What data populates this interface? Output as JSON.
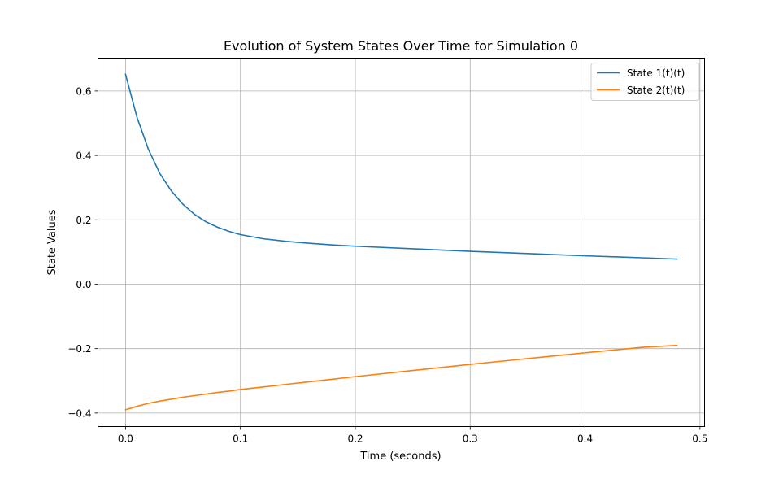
{
  "chart_data": {
    "type": "line",
    "title": "Evolution of System States Over Time for Simulation 0",
    "xlabel": "Time (seconds)",
    "ylabel": "State Values",
    "xlim": [
      -0.024,
      0.504
    ],
    "ylim": [
      -0.442,
      0.702
    ],
    "xticks": [
      0.0,
      0.1,
      0.2,
      0.3,
      0.4,
      0.5
    ],
    "xtick_labels": [
      "0.0",
      "0.1",
      "0.2",
      "0.3",
      "0.4",
      "0.5"
    ],
    "yticks": [
      -0.4,
      -0.2,
      0.0,
      0.2,
      0.4,
      0.6
    ],
    "ytick_labels": [
      "−0.4",
      "−0.2",
      "0.0",
      "0.2",
      "0.4",
      "0.6"
    ],
    "grid": true,
    "legend_position": "top-right",
    "x": [
      0.0,
      0.01,
      0.02,
      0.03,
      0.04,
      0.05,
      0.06,
      0.07,
      0.08,
      0.09,
      0.1,
      0.12,
      0.14,
      0.16,
      0.18,
      0.2,
      0.25,
      0.3,
      0.35,
      0.4,
      0.45,
      0.48
    ],
    "series": [
      {
        "name": "State 1(t)(t)",
        "color": "#1f77b4",
        "values": [
          0.652,
          0.518,
          0.418,
          0.343,
          0.289,
          0.248,
          0.217,
          0.194,
          0.177,
          0.164,
          0.154,
          0.141,
          0.133,
          0.127,
          0.122,
          0.118,
          0.11,
          0.102,
          0.095,
          0.088,
          0.082,
          0.078
        ]
      },
      {
        "name": "State 2(t)(t)",
        "color": "#ff7f0e",
        "values": [
          -0.39,
          -0.379,
          -0.37,
          -0.363,
          -0.357,
          -0.351,
          -0.346,
          -0.341,
          -0.336,
          -0.332,
          -0.327,
          -0.319,
          -0.311,
          -0.303,
          -0.295,
          -0.287,
          -0.268,
          -0.249,
          -0.231,
          -0.213,
          -0.196,
          -0.19
        ]
      }
    ]
  }
}
